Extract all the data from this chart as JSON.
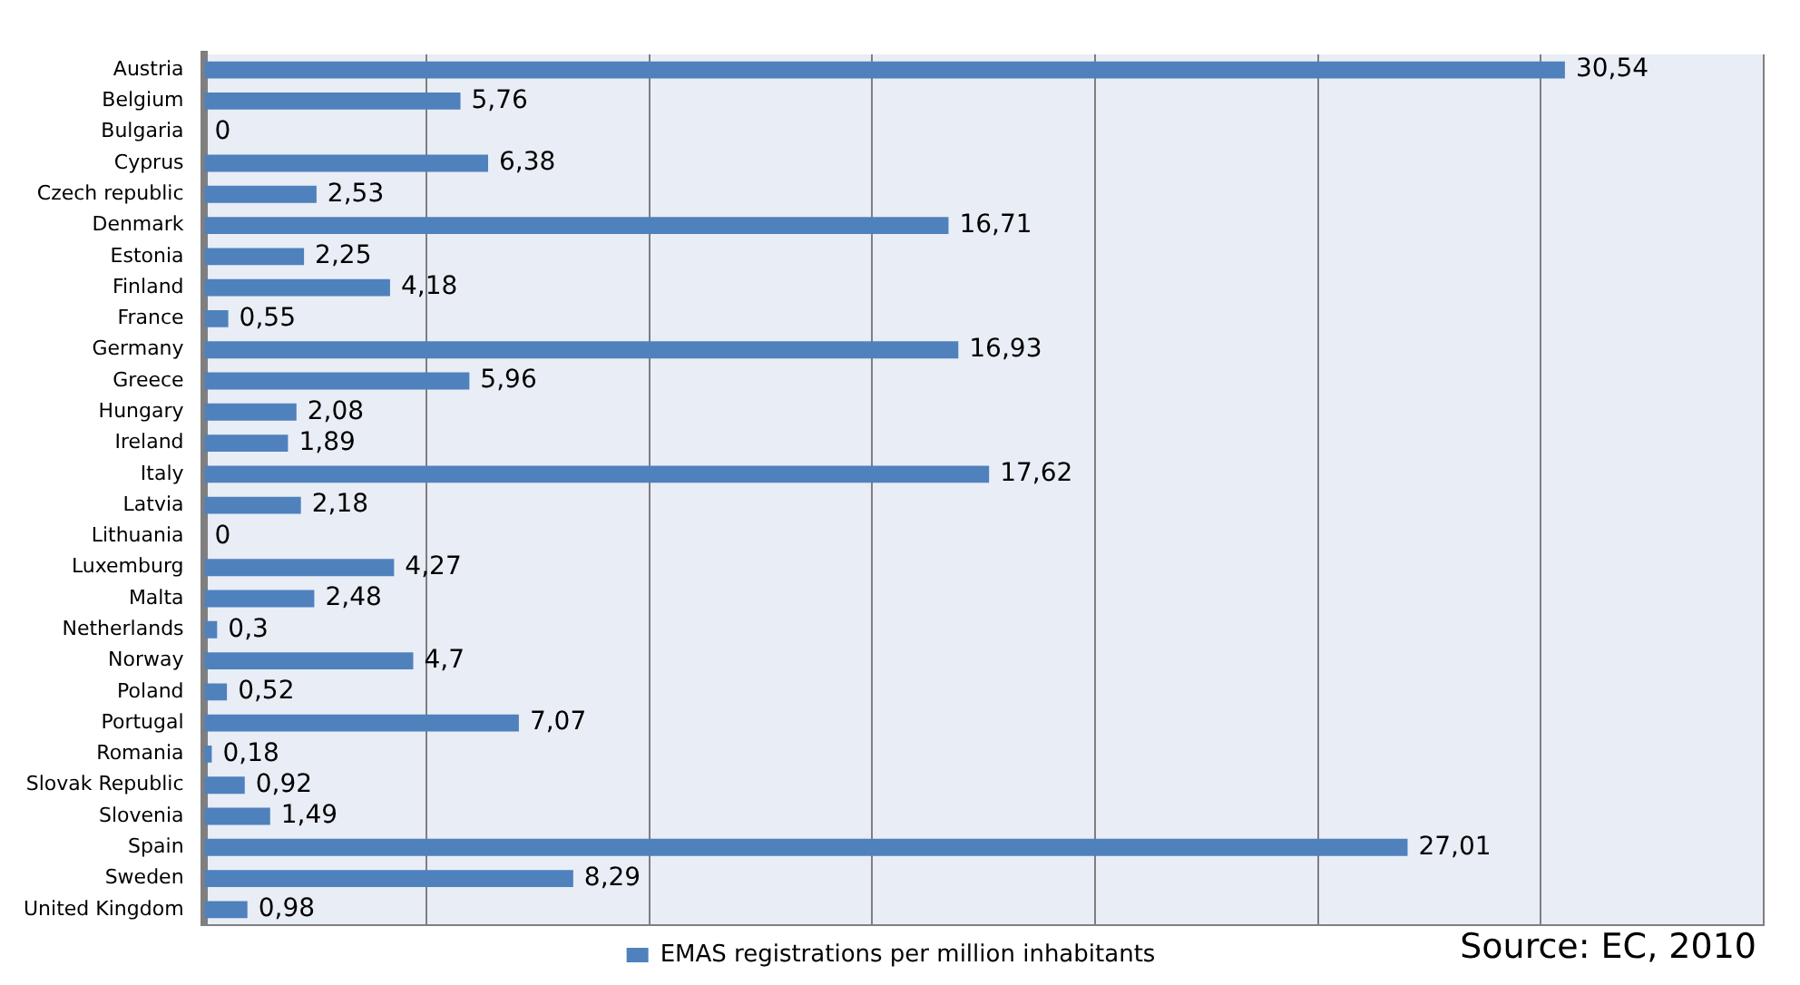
{
  "chart_data": {
    "type": "bar",
    "orientation": "horizontal",
    "categories": [
      "Austria",
      "Belgium",
      "Bulgaria",
      "Cyprus",
      "Czech republic",
      "Denmark",
      "Estonia",
      "Finland",
      "France",
      "Germany",
      "Greece",
      "Hungary",
      "Ireland",
      "Italy",
      "Latvia",
      "Lithuania",
      "Luxemburg",
      "Malta",
      "Netherlands",
      "Norway",
      "Poland",
      "Portugal",
      "Romania",
      "Slovak Republic",
      "Slovenia",
      "Spain",
      "Sweden",
      "United Kingdom"
    ],
    "series": [
      {
        "name": "EMAS registrations per million inhabitants",
        "color": "#4f81bd",
        "values": [
          30.54,
          5.76,
          0,
          6.38,
          2.53,
          16.71,
          2.25,
          4.18,
          0.55,
          16.93,
          5.96,
          2.08,
          1.89,
          17.62,
          2.18,
          0,
          4.27,
          2.48,
          0.3,
          4.7,
          0.52,
          7.07,
          0.18,
          0.92,
          1.49,
          27.01,
          8.29,
          0.98
        ],
        "value_labels": [
          "30,54",
          "5,76",
          "0",
          "6,38",
          "2,53",
          "16,71",
          "2,25",
          "4,18",
          "0,55",
          "16,93",
          "5,96",
          "2,08",
          "1,89",
          "17,62",
          "2,18",
          "0",
          "4,27",
          "2,48",
          "0,3",
          "4,7",
          "0,52",
          "7,07",
          "0,18",
          "0,92",
          "1,49",
          "27,01",
          "8,29",
          "0,98"
        ]
      }
    ],
    "xlim": [
      0,
      35
    ],
    "xticks": [
      {
        "value": 0,
        "label": null
      },
      {
        "value": 5,
        "label": null
      },
      {
        "value": 10,
        "label": null
      },
      {
        "value": 15,
        "label": null
      },
      {
        "value": 20,
        "label": null
      },
      {
        "value": 25,
        "label": null
      },
      {
        "value": 30,
        "label": null
      },
      {
        "value": 35,
        "label": null
      }
    ],
    "tick_labels": "y",
    "grid": "x",
    "legend": "bottom",
    "annotations": [
      "Source: EC, 2010"
    ]
  }
}
